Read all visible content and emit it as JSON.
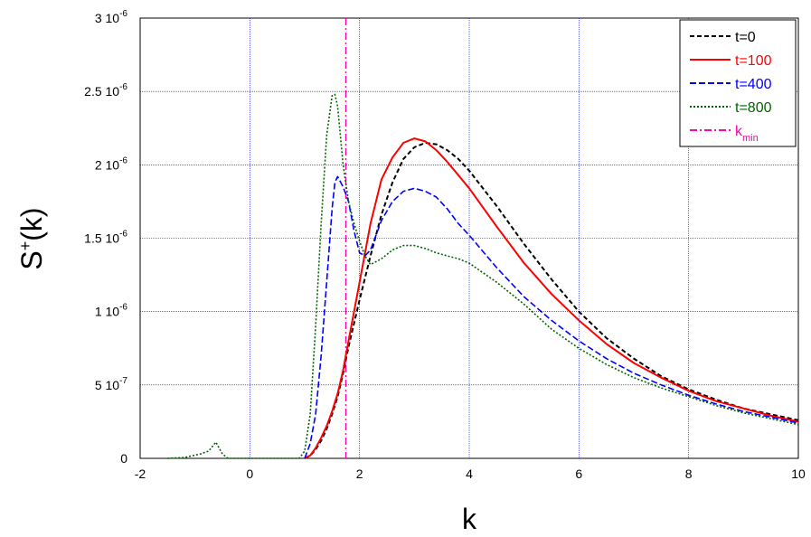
{
  "chart_data": {
    "type": "line",
    "xlabel": "k",
    "ylabel_base": "S",
    "ylabel_sup": "+",
    "ylabel_tail": "(k)",
    "xlim": [
      -2,
      10
    ],
    "ylim": [
      0,
      3e-06
    ],
    "grid": true,
    "legend_position": "top-right",
    "x_ticks": [
      {
        "value": -2,
        "label": "-2"
      },
      {
        "value": 0,
        "label": "0"
      },
      {
        "value": 2,
        "label": "2"
      },
      {
        "value": 4,
        "label": "4"
      },
      {
        "value": 6,
        "label": "6"
      },
      {
        "value": 8,
        "label": "8"
      },
      {
        "value": 10,
        "label": "10"
      }
    ],
    "y_ticks": [
      {
        "value": 0,
        "mant": "0",
        "exp": ""
      },
      {
        "value": 5e-07,
        "mant": "5 10",
        "exp": "-7"
      },
      {
        "value": 1e-06,
        "mant": "1 10",
        "exp": "-6"
      },
      {
        "value": 1.5e-06,
        "mant": "1.5 10",
        "exp": "-6"
      },
      {
        "value": 2e-06,
        "mant": "2 10",
        "exp": "-6"
      },
      {
        "value": 2.5e-06,
        "mant": "2.5 10",
        "exp": "-6"
      },
      {
        "value": 3e-06,
        "mant": "3 10",
        "exp": "-6"
      }
    ],
    "series": [
      {
        "name": "t=0",
        "color": "#000000",
        "dash": "5,3",
        "width": 2,
        "x": [
          1.0,
          1.1,
          1.2,
          1.3,
          1.4,
          1.5,
          1.6,
          1.7,
          1.8,
          1.9,
          2.0,
          2.2,
          2.4,
          2.6,
          2.8,
          3.0,
          3.2,
          3.4,
          3.6,
          3.8,
          4.0,
          4.5,
          5.0,
          5.5,
          6.0,
          6.5,
          7.0,
          7.5,
          8.0,
          8.5,
          9.0,
          9.5,
          10.0
        ],
        "y": [
          0,
          2e-08,
          6e-08,
          1.2e-07,
          2e-07,
          3e-07,
          4.2e-07,
          5.8e-07,
          7.6e-07,
          9.2e-07,
          1.08e-06,
          1.38e-06,
          1.66e-06,
          1.88e-06,
          2.04e-06,
          2.12e-06,
          2.15e-06,
          2.14e-06,
          2.1e-06,
          2.04e-06,
          1.96e-06,
          1.72e-06,
          1.46e-06,
          1.22e-06,
          1e-06,
          8.2e-07,
          6.8e-07,
          5.6e-07,
          4.7e-07,
          4e-07,
          3.4e-07,
          3e-07,
          2.6e-07
        ]
      },
      {
        "name": "t=100",
        "color": "#ff0000",
        "dash": "",
        "width": 2,
        "x": [
          1.0,
          1.1,
          1.2,
          1.3,
          1.4,
          1.5,
          1.6,
          1.7,
          1.8,
          1.9,
          2.0,
          2.2,
          2.4,
          2.6,
          2.8,
          3.0,
          3.2,
          3.4,
          3.6,
          3.8,
          4.0,
          4.5,
          5.0,
          5.5,
          6.0,
          6.5,
          7.0,
          7.5,
          8.0,
          8.5,
          9.0,
          9.5,
          10.0
        ],
        "y": [
          0,
          2e-08,
          7e-08,
          1.4e-07,
          2.2e-07,
          3.2e-07,
          4.4e-07,
          6e-07,
          8e-07,
          1e-06,
          1.2e-06,
          1.6e-06,
          1.9e-06,
          2.05e-06,
          2.15e-06,
          2.18e-06,
          2.16e-06,
          2.1e-06,
          2.02e-06,
          1.93e-06,
          1.84e-06,
          1.58e-06,
          1.33e-06,
          1.12e-06,
          9.4e-07,
          7.8e-07,
          6.5e-07,
          5.5e-07,
          4.6e-07,
          3.9e-07,
          3.4e-07,
          2.9e-07,
          2.5e-07
        ]
      },
      {
        "name": "t=400",
        "color": "#0000ff",
        "dash": "7,3",
        "width": 1.6,
        "x": [
          1.0,
          1.1,
          1.2,
          1.3,
          1.4,
          1.5,
          1.55,
          1.6,
          1.7,
          1.8,
          1.9,
          2.0,
          2.1,
          2.2,
          2.4,
          2.6,
          2.8,
          3.0,
          3.2,
          3.4,
          3.6,
          3.8,
          4.0,
          4.5,
          5.0,
          5.5,
          6.0,
          6.5,
          7.0,
          7.5,
          8.0,
          8.5,
          9.0,
          9.5,
          10.0
        ],
        "y": [
          0,
          1e-07,
          3e-07,
          7e-07,
          1.2e-06,
          1.7e-06,
          1.88e-06,
          1.92e-06,
          1.85e-06,
          1.75e-06,
          1.55e-06,
          1.4e-06,
          1.38e-06,
          1.42e-06,
          1.62e-06,
          1.75e-06,
          1.82e-06,
          1.84e-06,
          1.82e-06,
          1.78e-06,
          1.7e-06,
          1.6e-06,
          1.52e-06,
          1.3e-06,
          1.1e-06,
          9.4e-07,
          8e-07,
          6.8e-07,
          5.8e-07,
          5e-07,
          4.3e-07,
          3.7e-07,
          3.2e-07,
          2.8e-07,
          2.4e-07
        ]
      },
      {
        "name": "t=800",
        "color": "#006400",
        "dash": "2,2",
        "width": 1.6,
        "x": [
          -1.5,
          -1.2,
          -0.9,
          -0.75,
          -0.62,
          -0.5,
          -0.4,
          -0.2,
          0.0,
          0.5,
          0.9,
          1.0,
          1.1,
          1.2,
          1.3,
          1.4,
          1.5,
          1.55,
          1.6,
          1.7,
          1.8,
          1.9,
          2.0,
          2.1,
          2.2,
          2.4,
          2.6,
          2.8,
          3.0,
          3.2,
          3.4,
          3.6,
          3.8,
          4.0,
          4.5,
          5.0,
          5.5,
          6.0,
          6.5,
          7.0,
          7.5,
          8.0,
          8.5,
          9.0,
          9.5,
          10.0
        ],
        "y": [
          0,
          5e-09,
          3e-08,
          5e-08,
          1.1e-07,
          3e-08,
          0,
          0,
          0,
          0,
          0,
          5e-08,
          3e-07,
          9e-07,
          1.6e-06,
          2.2e-06,
          2.47e-06,
          2.48e-06,
          2.4e-06,
          2e-06,
          1.75e-06,
          1.6e-06,
          1.48e-06,
          1.38e-06,
          1.32e-06,
          1.36e-06,
          1.42e-06,
          1.45e-06,
          1.45e-06,
          1.43e-06,
          1.4e-06,
          1.38e-06,
          1.36e-06,
          1.33e-06,
          1.2e-06,
          1.05e-06,
          8.8e-07,
          7.5e-07,
          6.4e-07,
          5.5e-07,
          4.8e-07,
          4.2e-07,
          3.6e-07,
          3.1e-07,
          2.7e-07,
          2.3e-07
        ]
      }
    ],
    "vline": {
      "name": "k_min",
      "x": 1.75,
      "color": "#ff00aa"
    },
    "legend": [
      {
        "label": "t=0",
        "color": "#000000",
        "text_color": "#000000",
        "dash": "5,3",
        "sub": ""
      },
      {
        "label": "t=100",
        "color": "#ff0000",
        "text_color": "#ff0000",
        "dash": "",
        "sub": ""
      },
      {
        "label": "t=400",
        "color": "#0000ff",
        "text_color": "#0000ff",
        "dash": "7,3",
        "sub": ""
      },
      {
        "label": "t=800",
        "color": "#006400",
        "text_color": "#006400",
        "dash": "2,2",
        "sub": ""
      },
      {
        "label": "k",
        "color": "#ff00aa",
        "text_color": "#ff00aa",
        "dash": "8,3,2,3",
        "sub": "min"
      }
    ]
  }
}
